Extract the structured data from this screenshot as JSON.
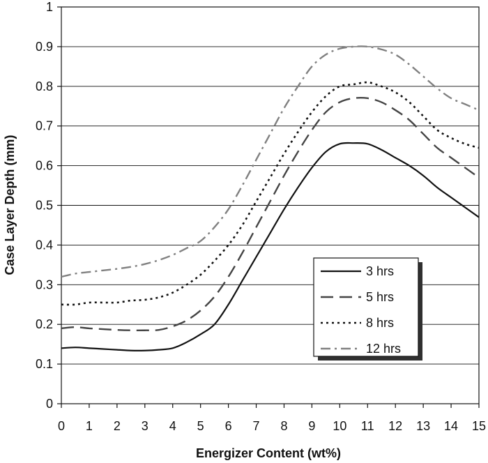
{
  "chart_data": {
    "type": "line",
    "title": "",
    "xlabel": "Energizer Content (wt%)",
    "ylabel": "Case Layer Depth (mm)",
    "xlim": [
      0,
      15
    ],
    "ylim": [
      0,
      1
    ],
    "x_ticks": [
      0,
      1,
      2,
      3,
      4,
      5,
      6,
      7,
      8,
      9,
      10,
      11,
      12,
      13,
      14,
      15
    ],
    "y_ticks": [
      0,
      0.1,
      0.2,
      0.3,
      0.4,
      0.5,
      0.6,
      0.7,
      0.8,
      0.9,
      1
    ],
    "x_tick_labels": [
      "0",
      "1",
      "2",
      "3",
      "4",
      "5",
      "6",
      "7",
      "8",
      "9",
      "10",
      "11",
      "12",
      "13",
      "14",
      "15"
    ],
    "y_tick_labels": [
      "0",
      "0.1",
      "0.2",
      "0.3",
      "0.4",
      "0.5",
      "0.6",
      "0.7",
      "0.8",
      "0.9",
      "1"
    ],
    "grid": "horizontal",
    "legend_position": "lower-right",
    "series": [
      {
        "name": "3 hrs",
        "color": "#111111",
        "dash": "solid",
        "x": [
          0,
          0.5,
          1,
          1.5,
          2,
          2.5,
          3,
          3.5,
          4,
          4.5,
          5,
          5.5,
          6,
          6.5,
          7,
          7.5,
          8,
          8.5,
          9,
          9.5,
          10,
          10.5,
          11,
          11.5,
          12,
          12.5,
          13,
          13.5,
          14,
          14.5,
          15
        ],
        "values": [
          0.14,
          0.142,
          0.14,
          0.138,
          0.136,
          0.134,
          0.134,
          0.136,
          0.14,
          0.155,
          0.175,
          0.2,
          0.25,
          0.31,
          0.37,
          0.43,
          0.49,
          0.545,
          0.595,
          0.635,
          0.655,
          0.657,
          0.655,
          0.64,
          0.62,
          0.6,
          0.575,
          0.545,
          0.52,
          0.495,
          0.47
        ]
      },
      {
        "name": "5 hrs",
        "color": "#444444",
        "dash": "long-dash",
        "x": [
          0,
          0.5,
          1,
          1.5,
          2,
          2.5,
          3,
          3.5,
          4,
          4.5,
          5,
          5.5,
          6,
          6.5,
          7,
          7.5,
          8,
          8.5,
          9,
          9.5,
          10,
          10.5,
          11,
          11.5,
          12,
          12.5,
          13,
          13.5,
          14,
          14.5,
          15
        ],
        "values": [
          0.19,
          0.193,
          0.19,
          0.188,
          0.186,
          0.185,
          0.185,
          0.186,
          0.195,
          0.21,
          0.235,
          0.27,
          0.32,
          0.38,
          0.445,
          0.51,
          0.575,
          0.635,
          0.69,
          0.735,
          0.76,
          0.77,
          0.77,
          0.76,
          0.74,
          0.715,
          0.68,
          0.645,
          0.62,
          0.595,
          0.57
        ]
      },
      {
        "name": "8 hrs",
        "color": "#111111",
        "dash": "dot",
        "x": [
          0,
          0.5,
          1,
          1.5,
          2,
          2.5,
          3,
          3.5,
          4,
          4.5,
          5,
          5.5,
          6,
          6.5,
          7,
          7.5,
          8,
          8.5,
          9,
          9.5,
          10,
          10.5,
          11,
          11.5,
          12,
          12.5,
          13,
          13.5,
          14,
          14.5,
          15
        ],
        "values": [
          0.25,
          0.25,
          0.255,
          0.255,
          0.255,
          0.26,
          0.262,
          0.268,
          0.28,
          0.3,
          0.325,
          0.36,
          0.4,
          0.45,
          0.51,
          0.57,
          0.63,
          0.685,
          0.735,
          0.775,
          0.8,
          0.805,
          0.81,
          0.8,
          0.785,
          0.76,
          0.725,
          0.69,
          0.67,
          0.655,
          0.645
        ]
      },
      {
        "name": "12 hrs",
        "color": "#808080",
        "dash": "dash-dot",
        "x": [
          0,
          0.5,
          1,
          1.5,
          2,
          2.5,
          3,
          3.5,
          4,
          4.5,
          5,
          5.5,
          6,
          6.5,
          7,
          7.5,
          8,
          8.5,
          9,
          9.5,
          10,
          10.5,
          11,
          11.5,
          12,
          12.5,
          13,
          13.5,
          14,
          14.5,
          15
        ],
        "values": [
          0.32,
          0.328,
          0.332,
          0.336,
          0.34,
          0.345,
          0.352,
          0.362,
          0.375,
          0.392,
          0.41,
          0.445,
          0.49,
          0.55,
          0.615,
          0.68,
          0.745,
          0.8,
          0.85,
          0.88,
          0.895,
          0.9,
          0.9,
          0.893,
          0.88,
          0.855,
          0.825,
          0.795,
          0.77,
          0.755,
          0.74
        ]
      }
    ]
  }
}
